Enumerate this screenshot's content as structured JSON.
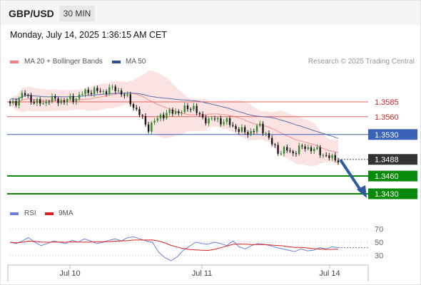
{
  "header": {
    "symbol": "GBP/USD",
    "timeframe": "30 MIN"
  },
  "timestamp": "Monday, July 14, 2025 1:36:15 AM CET",
  "legend": {
    "ma20_bb": "MA 20 + Bollinger Bands",
    "ma50": "MA 50",
    "source": "Research © 2025 Trading Central",
    "rsi": "RSI",
    "rsi_ma": "9MA"
  },
  "colors": {
    "bullish": "#2e8b2e",
    "bearish": "#1a1a1a",
    "resistance": "#e06060",
    "ma50": "#5a6fa8",
    "pivot": "#3a63b8",
    "support": "#0a8a0a",
    "last_price": "#333333",
    "arrow": "#2f5aa0",
    "rsi": "#6b82dd",
    "rsi_ma": "#dd2020"
  },
  "chart_data": [
    {
      "type": "candlestick",
      "series_name": "GBP/USD",
      "x_tick_labels": [
        "Jul 10",
        "Jul 11",
        "Jul 14"
      ],
      "overlays": [
        "MA 20 + Bollinger Bands",
        "MA 50"
      ],
      "price_range": [
        1.3405,
        1.364
      ],
      "ohlc_approx": {
        "first": 1.3583,
        "max_high": 1.3614,
        "min_low": 1.3486,
        "last": 1.3488
      },
      "close_path": [
        1.358,
        1.3586,
        1.36,
        1.359,
        1.3584,
        1.3582,
        1.359,
        1.3588,
        1.3586,
        1.3589,
        1.3591,
        1.3599,
        1.3603,
        1.3604,
        1.3601,
        1.3606,
        1.3607,
        1.36,
        1.359,
        1.3575,
        1.356,
        1.354,
        1.3552,
        1.3562,
        1.3566,
        1.3568,
        1.3569,
        1.3574,
        1.3577,
        1.3558,
        1.3555,
        1.3556,
        1.3553,
        1.3552,
        1.3543,
        1.3538,
        1.3532,
        1.3536,
        1.3545,
        1.3532,
        1.3512,
        1.35,
        1.3505,
        1.3498,
        1.3506,
        1.3509,
        1.3505,
        1.3502,
        1.3494,
        1.349,
        1.3488
      ],
      "levels": [
        {
          "label": "1.3585",
          "value": 1.3585,
          "kind": "resistance"
        },
        {
          "label": "1.3560",
          "value": 1.356,
          "kind": "resistance"
        },
        {
          "label": "1.3530",
          "value": 1.353,
          "kind": "pivot"
        },
        {
          "label": "1.3488",
          "value": 1.3488,
          "kind": "last_price"
        },
        {
          "label": "1.3460",
          "value": 1.346,
          "kind": "support"
        },
        {
          "label": "1.3430",
          "value": 1.343,
          "kind": "support"
        }
      ],
      "projection": {
        "from": 1.3488,
        "to": 1.343,
        "direction": "down"
      }
    },
    {
      "type": "line",
      "series_names": [
        "RSI",
        "9MA"
      ],
      "yticks": [
        70,
        50,
        30
      ],
      "ylim": [
        20,
        80
      ],
      "rsi_approx": [
        50,
        48,
        52,
        57,
        50,
        45,
        48,
        52,
        50,
        48,
        53,
        50,
        55,
        52,
        48,
        50,
        53,
        55,
        52,
        57,
        58,
        55,
        52,
        50,
        35,
        27,
        22,
        28,
        38,
        44,
        50,
        48,
        47,
        50,
        48,
        45,
        52,
        43,
        40,
        45,
        48,
        47,
        45,
        42,
        40,
        38,
        36,
        40,
        37,
        38,
        42,
        40,
        43,
        42
      ]
    }
  ]
}
